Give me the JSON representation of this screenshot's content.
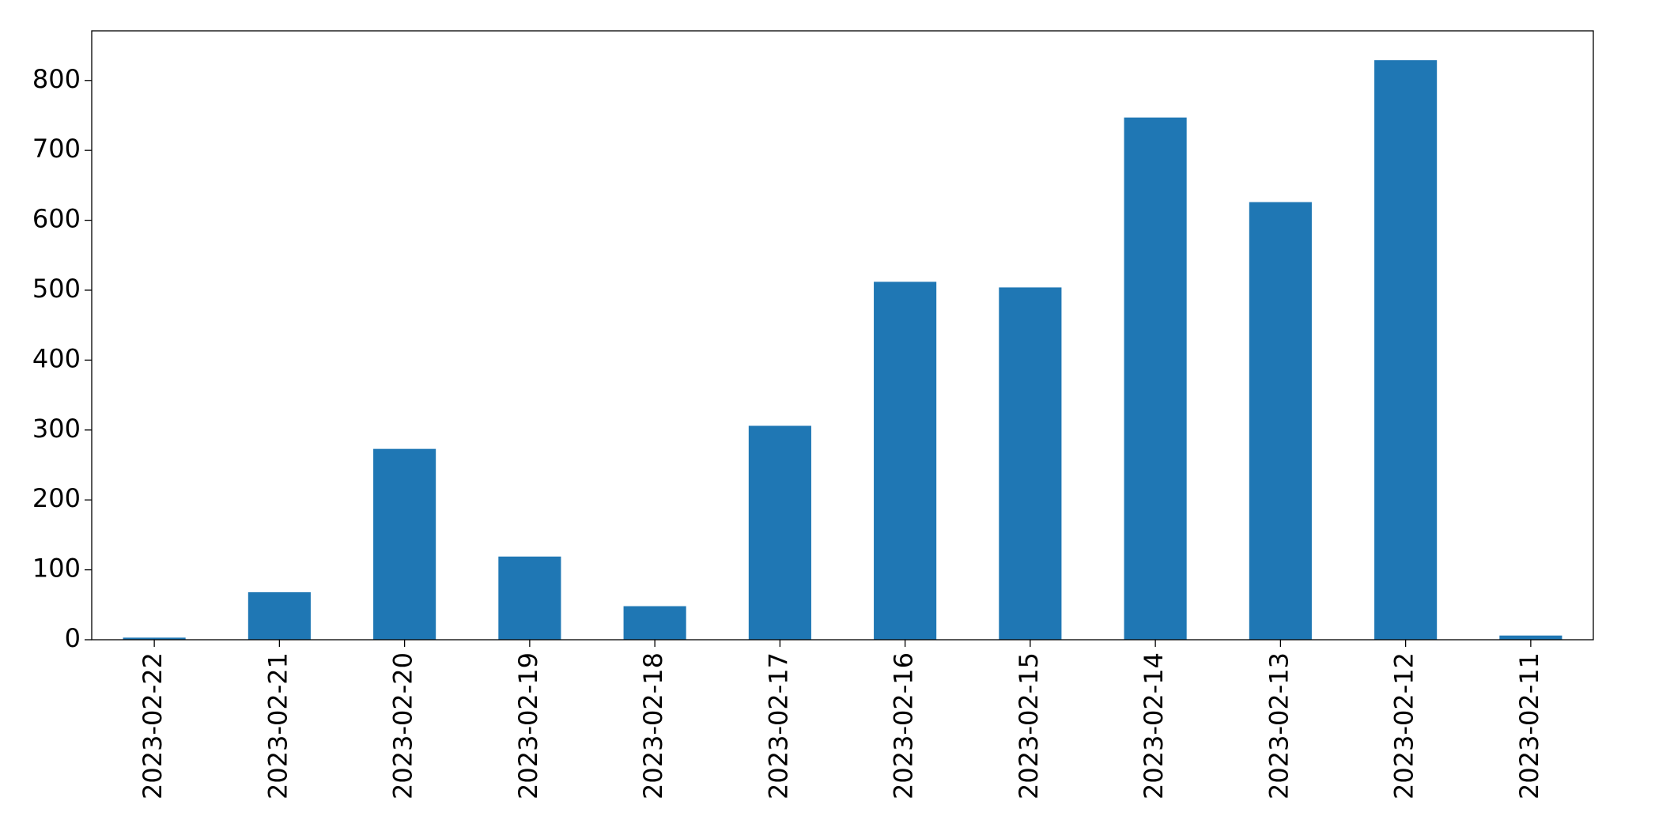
{
  "chart_data": {
    "type": "bar",
    "categories": [
      "2023-02-22",
      "2023-02-21",
      "2023-02-20",
      "2023-02-19",
      "2023-02-18",
      "2023-02-17",
      "2023-02-16",
      "2023-02-15",
      "2023-02-14",
      "2023-02-13",
      "2023-02-12",
      "2023-02-11"
    ],
    "values": [
      3,
      68,
      273,
      119,
      48,
      306,
      512,
      504,
      747,
      626,
      829,
      6
    ],
    "color": "#1f77b4",
    "ylim": [
      0,
      871
    ],
    "yticks": [
      0,
      100,
      200,
      300,
      400,
      500,
      600,
      700,
      800
    ],
    "grid": false
  }
}
